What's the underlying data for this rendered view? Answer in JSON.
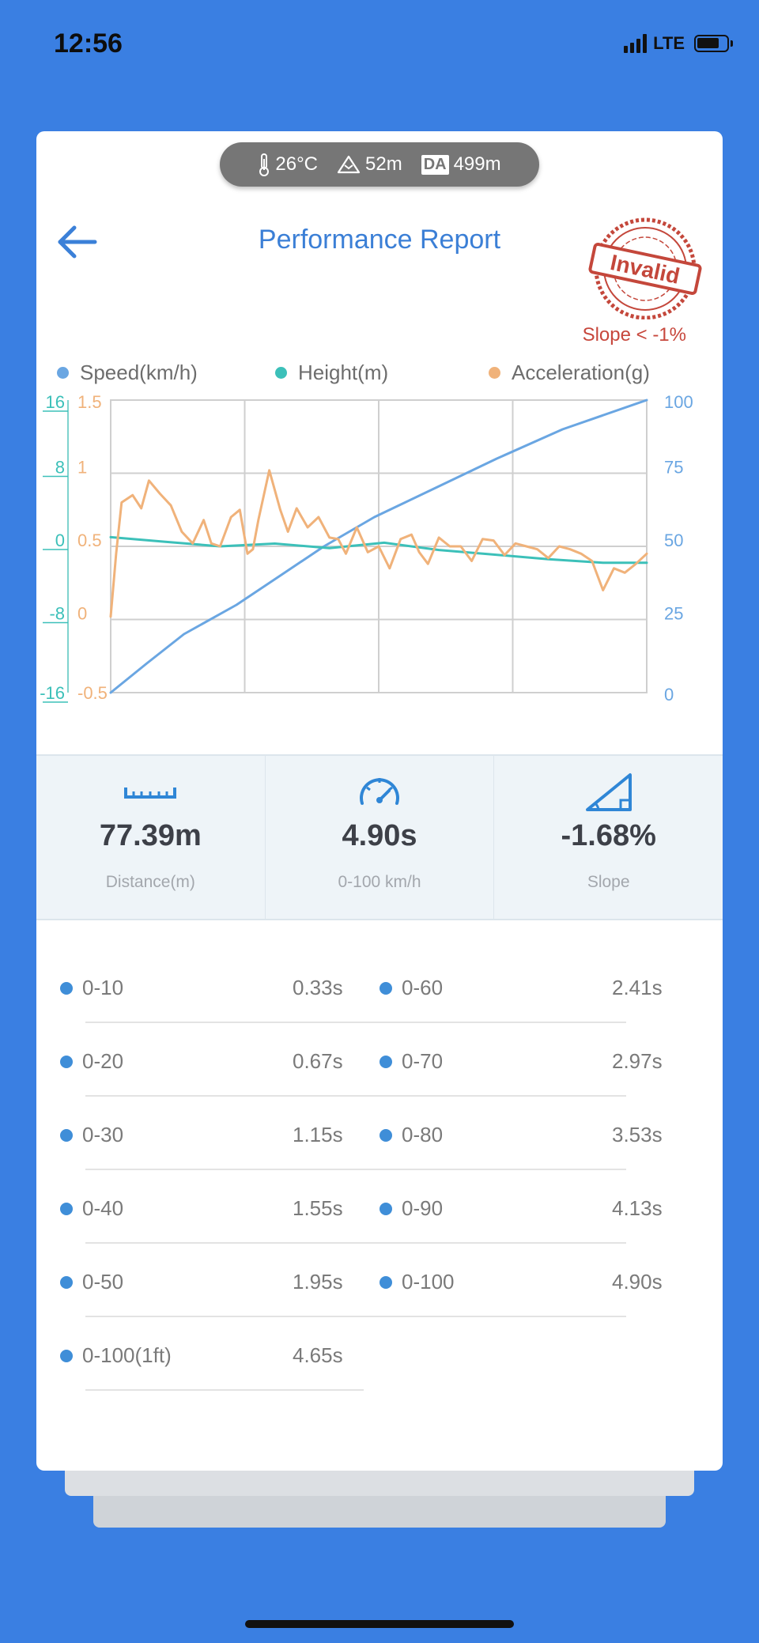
{
  "status_bar": {
    "time": "12:56",
    "network": "LTE"
  },
  "weather": {
    "temperature": "26°C",
    "altitude": "52m",
    "da_label": "DA",
    "density_altitude": "499m"
  },
  "header": {
    "title": "Performance Report"
  },
  "stamp": {
    "text": "Invalid",
    "warning": "Slope < -1%"
  },
  "chart_data": {
    "type": "line",
    "legend": [
      {
        "name": "Speed(km/h)",
        "color": "#6aa6e2"
      },
      {
        "name": "Height(m)",
        "color": "#3cc0b9"
      },
      {
        "name": "Acceleration(g)",
        "color": "#f0b27a"
      }
    ],
    "legend_position": "top",
    "grid": true,
    "time_range_s": [
      0,
      4.9
    ],
    "axes": {
      "height_left": {
        "ticks": [
          "16",
          "8",
          "0",
          "-8",
          "-16"
        ],
        "range": [
          -16,
          16
        ],
        "color": "#3cc0b9"
      },
      "acceleration_left": {
        "ticks": [
          "1.5",
          "1",
          "0.5",
          "0",
          "-0.5"
        ],
        "range": [
          -0.5,
          1.5
        ],
        "color": "#f0b27a"
      },
      "speed_right": {
        "ticks": [
          "100",
          "75",
          "50",
          "25",
          "0"
        ],
        "range": [
          0,
          100
        ],
        "color": "#6aa6e2"
      }
    },
    "series": [
      {
        "name": "Speed(km/h)",
        "color": "#6aa6e2",
        "x": [
          0,
          0.33,
          0.67,
          1.15,
          1.55,
          1.95,
          2.41,
          2.97,
          3.53,
          4.13,
          4.9
        ],
        "y": [
          0,
          10,
          20,
          30,
          40,
          50,
          60,
          70,
          80,
          90,
          100
        ]
      },
      {
        "name": "Height(m)",
        "color": "#3cc0b9",
        "x": [
          0,
          0.5,
          1.0,
          1.5,
          2.0,
          2.5,
          3.0,
          3.5,
          4.0,
          4.5,
          4.9
        ],
        "y": [
          1.0,
          0.5,
          0.0,
          0.3,
          -0.2,
          0.4,
          -0.4,
          -0.9,
          -1.4,
          -1.8,
          -1.8
        ]
      },
      {
        "name": "Acceleration(g)",
        "color": "#f0b27a",
        "x": [
          0,
          0.05,
          0.1,
          0.2,
          0.28,
          0.35,
          0.45,
          0.55,
          0.65,
          0.75,
          0.85,
          0.92,
          1.0,
          1.1,
          1.18,
          1.25,
          1.3,
          1.35,
          1.45,
          1.55,
          1.62,
          1.7,
          1.8,
          1.9,
          2.0,
          2.08,
          2.15,
          2.25,
          2.35,
          2.45,
          2.55,
          2.65,
          2.75,
          2.82,
          2.9,
          3.0,
          3.1,
          3.2,
          3.3,
          3.4,
          3.5,
          3.6,
          3.7,
          3.8,
          3.9,
          4.0,
          4.1,
          4.2,
          4.3,
          4.4,
          4.5,
          4.6,
          4.7,
          4.8,
          4.9
        ],
        "y": [
          0.02,
          0.45,
          0.8,
          0.85,
          0.76,
          0.95,
          0.86,
          0.78,
          0.6,
          0.52,
          0.68,
          0.52,
          0.5,
          0.7,
          0.75,
          0.45,
          0.48,
          0.68,
          1.02,
          0.75,
          0.6,
          0.76,
          0.63,
          0.7,
          0.56,
          0.55,
          0.45,
          0.63,
          0.46,
          0.5,
          0.35,
          0.55,
          0.58,
          0.46,
          0.38,
          0.56,
          0.5,
          0.5,
          0.4,
          0.55,
          0.54,
          0.44,
          0.52,
          0.5,
          0.48,
          0.42,
          0.5,
          0.48,
          0.45,
          0.4,
          0.2,
          0.35,
          0.32,
          0.38,
          0.45
        ]
      }
    ]
  },
  "stats": [
    {
      "icon": "ruler-icon",
      "value": "77.39m",
      "label": "Distance(m)"
    },
    {
      "icon": "speedometer-icon",
      "value": "4.90s",
      "label": "0-100 km/h"
    },
    {
      "icon": "slope-icon",
      "value": "-1.68%",
      "label": "Slope"
    }
  ],
  "splits_left": [
    {
      "label": "0-10",
      "value": "0.33s"
    },
    {
      "label": "0-20",
      "value": "0.67s"
    },
    {
      "label": "0-30",
      "value": "1.15s"
    },
    {
      "label": "0-40",
      "value": "1.55s"
    },
    {
      "label": "0-50",
      "value": "1.95s"
    },
    {
      "label": "0-100(1ft)",
      "value": "4.65s"
    }
  ],
  "splits_right": [
    {
      "label": "0-60",
      "value": "2.41s"
    },
    {
      "label": "0-70",
      "value": "2.97s"
    },
    {
      "label": "0-80",
      "value": "3.53s"
    },
    {
      "label": "0-90",
      "value": "4.13s"
    },
    {
      "label": "0-100",
      "value": "4.90s"
    }
  ]
}
